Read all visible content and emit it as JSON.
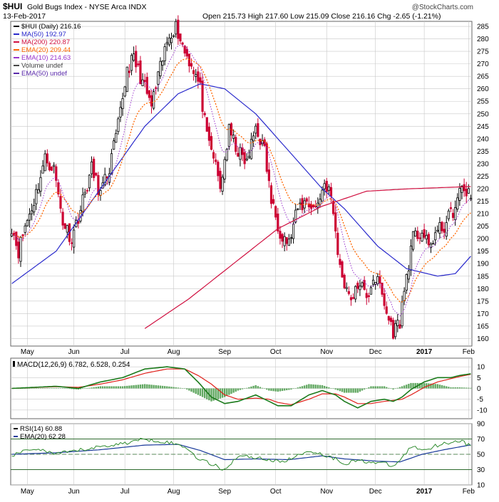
{
  "header": {
    "symbol": "$HUI",
    "name": "Gold Bugs Index - NYSE Arca  INDX",
    "date": "13-Feb-2017",
    "ohlc_text": "Open 215.73  High 217.60  Low 215.09  Close 216.16  Chg -2.65 (-1.21%)",
    "watermark": "@StockCharts.com"
  },
  "colors": {
    "up": "#000000",
    "down": "#cc0033",
    "ma50": "#2a2acc",
    "ma200": "#d01040",
    "ema20": "#ff6600",
    "ema10": "#9933cc",
    "macd": "#1a7a1a",
    "signal": "#e0201a",
    "hist": "#2e8b2e",
    "rsi": "#2e8b2e",
    "rsi_ema": "#1a3a9a",
    "grid": "#c8c8c8",
    "frame": "#666666"
  },
  "chart_data": [
    {
      "type": "candlestick",
      "title": "$HUI (Daily) 216.16",
      "ylim": [
        157,
        287
      ],
      "yticks": [
        160,
        165,
        170,
        175,
        180,
        185,
        190,
        195,
        200,
        205,
        210,
        215,
        220,
        225,
        230,
        235,
        240,
        245,
        250,
        255,
        260,
        265,
        270,
        275,
        280,
        285
      ],
      "x_tick_labels": [
        "May",
        "Jun",
        "Jul",
        "Aug",
        "Sep",
        "Oct",
        "Nov",
        "Dec",
        "2017",
        "Feb"
      ],
      "x_tick_days": [
        7,
        28,
        51,
        73,
        96,
        119,
        142,
        164,
        186,
        206
      ],
      "legend": [
        {
          "key": "price",
          "text": "$HUI (Daily) 216.16"
        },
        {
          "key": "ma50",
          "text": "MA(50) 192.97"
        },
        {
          "key": "ma200",
          "text": "MA(200) 220.87"
        },
        {
          "key": "ema20",
          "text": "EMA(20) 209.44"
        },
        {
          "key": "ema10",
          "text": "EMA(10) 214.63"
        },
        {
          "key": "volume",
          "text": "Volume undef"
        },
        {
          "key": "ema50",
          "text": "EMA(50) undef"
        }
      ],
      "close_keys": [
        [
          0,
          205
        ],
        [
          3,
          195
        ],
        [
          6,
          205
        ],
        [
          10,
          215
        ],
        [
          15,
          232
        ],
        [
          19,
          228
        ],
        [
          23,
          207
        ],
        [
          27,
          200
        ],
        [
          31,
          212
        ],
        [
          36,
          228
        ],
        [
          40,
          218
        ],
        [
          44,
          228
        ],
        [
          48,
          245
        ],
        [
          52,
          268
        ],
        [
          55,
          272
        ],
        [
          58,
          265
        ],
        [
          63,
          253
        ],
        [
          67,
          268
        ],
        [
          71,
          282
        ],
        [
          74,
          285
        ],
        [
          78,
          275
        ],
        [
          82,
          268
        ],
        [
          85,
          260
        ],
        [
          88,
          240
        ],
        [
          91,
          233
        ],
        [
          94,
          220
        ],
        [
          98,
          243
        ],
        [
          102,
          235
        ],
        [
          106,
          230
        ],
        [
          110,
          245
        ],
        [
          114,
          235
        ],
        [
          117,
          215
        ],
        [
          121,
          203
        ],
        [
          125,
          198
        ],
        [
          129,
          212
        ],
        [
          133,
          215
        ],
        [
          137,
          212
        ],
        [
          141,
          222
        ],
        [
          143,
          220
        ],
        [
          145,
          210
        ],
        [
          148,
          188
        ],
        [
          151,
          180
        ],
        [
          154,
          176
        ],
        [
          157,
          183
        ],
        [
          160,
          175
        ],
        [
          163,
          185
        ],
        [
          166,
          181
        ],
        [
          169,
          170
        ],
        [
          172,
          163
        ],
        [
          175,
          167
        ],
        [
          178,
          185
        ],
        [
          181,
          200
        ],
        [
          185,
          203
        ],
        [
          188,
          196
        ],
        [
          191,
          202
        ],
        [
          195,
          205
        ],
        [
          198,
          210
        ],
        [
          200,
          212
        ],
        [
          203,
          221
        ],
        [
          205,
          219
        ],
        [
          207,
          216.16
        ]
      ],
      "series_notes": {
        "ma50": [
          [
            0,
            182
          ],
          [
            20,
            195
          ],
          [
            40,
            220
          ],
          [
            60,
            245
          ],
          [
            75,
            258
          ],
          [
            85,
            262
          ],
          [
            96,
            260
          ],
          [
            110,
            250
          ],
          [
            125,
            235
          ],
          [
            140,
            220
          ],
          [
            150,
            212
          ],
          [
            165,
            197
          ],
          [
            178,
            188
          ],
          [
            192,
            185
          ],
          [
            200,
            186
          ],
          [
            207,
            192.97
          ]
        ],
        "ma200": [
          [
            60,
            164
          ],
          [
            80,
            176
          ],
          [
            100,
            190
          ],
          [
            120,
            204
          ],
          [
            140,
            213
          ],
          [
            160,
            219
          ],
          [
            180,
            220
          ],
          [
            207,
            220.87
          ]
        ]
      }
    },
    {
      "type": "line",
      "title": "MACD(12,26,9) 6.782, 6.528, 0.254",
      "ylim": [
        -14,
        14
      ],
      "yticks": [
        10,
        5,
        0,
        -5,
        -10
      ],
      "x_tick_labels": [
        "May",
        "Jun",
        "Jul",
        "Aug",
        "Sep",
        "Oct",
        "Nov",
        "Dec",
        "2017",
        "Feb"
      ],
      "macd_keys": [
        [
          0,
          0
        ],
        [
          10,
          0.5
        ],
        [
          20,
          1
        ],
        [
          30,
          0
        ],
        [
          40,
          3
        ],
        [
          50,
          5
        ],
        [
          60,
          9
        ],
        [
          70,
          10
        ],
        [
          78,
          9
        ],
        [
          84,
          3
        ],
        [
          90,
          -4
        ],
        [
          96,
          -7
        ],
        [
          102,
          -6
        ],
        [
          110,
          -3
        ],
        [
          116,
          -6
        ],
        [
          120,
          -8
        ],
        [
          126,
          -8
        ],
        [
          134,
          -3
        ],
        [
          140,
          -1
        ],
        [
          146,
          -3
        ],
        [
          150,
          -6
        ],
        [
          156,
          -9
        ],
        [
          162,
          -6
        ],
        [
          168,
          -5
        ],
        [
          172,
          -6
        ],
        [
          176,
          -4
        ],
        [
          180,
          -0.5
        ],
        [
          186,
          3
        ],
        [
          192,
          5
        ],
        [
          198,
          5
        ],
        [
          202,
          6
        ],
        [
          207,
          6.782
        ]
      ],
      "signal_keys": [
        [
          0,
          0
        ],
        [
          10,
          0.4
        ],
        [
          20,
          0.8
        ],
        [
          30,
          0.5
        ],
        [
          40,
          2
        ],
        [
          50,
          4
        ],
        [
          60,
          7
        ],
        [
          70,
          9
        ],
        [
          78,
          9
        ],
        [
          84,
          6
        ],
        [
          90,
          2
        ],
        [
          96,
          -3
        ],
        [
          102,
          -5
        ],
        [
          110,
          -4.5
        ],
        [
          116,
          -5
        ],
        [
          120,
          -6.5
        ],
        [
          126,
          -7.5
        ],
        [
          134,
          -5
        ],
        [
          140,
          -2.5
        ],
        [
          146,
          -2.5
        ],
        [
          150,
          -4
        ],
        [
          156,
          -7
        ],
        [
          162,
          -7
        ],
        [
          168,
          -6
        ],
        [
          172,
          -5.5
        ],
        [
          176,
          -5
        ],
        [
          180,
          -3
        ],
        [
          186,
          0.5
        ],
        [
          192,
          3
        ],
        [
          198,
          4.5
        ],
        [
          202,
          5.5
        ],
        [
          207,
          6.528
        ]
      ],
      "series": [
        {
          "name": "MACD(12,26,9)",
          "value": "6.782"
        },
        {
          "name": "Signal",
          "value": "6.528"
        },
        {
          "name": "Histogram",
          "value": "0.254"
        }
      ]
    },
    {
      "type": "line",
      "title": "RSI(14) 60.88",
      "ylim": [
        10,
        90
      ],
      "yticks": [
        90,
        70,
        50,
        30,
        10
      ],
      "overbought": 70,
      "oversold": 30,
      "x_tick_labels": [
        "May",
        "Jun",
        "Jul",
        "Aug",
        "Sep",
        "Oct",
        "Nov",
        "Dec",
        "2017",
        "Feb"
      ],
      "rsi_keys": [
        [
          0,
          48
        ],
        [
          10,
          58
        ],
        [
          20,
          50
        ],
        [
          30,
          55
        ],
        [
          40,
          60
        ],
        [
          50,
          64
        ],
        [
          60,
          70
        ],
        [
          70,
          66
        ],
        [
          78,
          60
        ],
        [
          84,
          45
        ],
        [
          90,
          37
        ],
        [
          96,
          30
        ],
        [
          102,
          48
        ],
        [
          110,
          46
        ],
        [
          116,
          43
        ],
        [
          120,
          40
        ],
        [
          126,
          44
        ],
        [
          134,
          55
        ],
        [
          140,
          50
        ],
        [
          146,
          44
        ],
        [
          150,
          38
        ],
        [
          156,
          42
        ],
        [
          162,
          40
        ],
        [
          168,
          38
        ],
        [
          172,
          34
        ],
        [
          176,
          45
        ],
        [
          180,
          60
        ],
        [
          186,
          56
        ],
        [
          192,
          62
        ],
        [
          198,
          66
        ],
        [
          202,
          68
        ],
        [
          207,
          60.88
        ]
      ],
      "rsi_ema_keys": [
        [
          0,
          50
        ],
        [
          20,
          52
        ],
        [
          40,
          56
        ],
        [
          60,
          62
        ],
        [
          75,
          63
        ],
        [
          85,
          55
        ],
        [
          96,
          43
        ],
        [
          110,
          44
        ],
        [
          125,
          43
        ],
        [
          140,
          48
        ],
        [
          150,
          44
        ],
        [
          165,
          41
        ],
        [
          175,
          40
        ],
        [
          185,
          50
        ],
        [
          195,
          56
        ],
        [
          207,
          62.28
        ]
      ],
      "legend": [
        {
          "key": "rsi",
          "text": "RSI(14) 60.88"
        },
        {
          "key": "rsi_ema",
          "text": "EMA(20) 62.28"
        }
      ]
    }
  ]
}
